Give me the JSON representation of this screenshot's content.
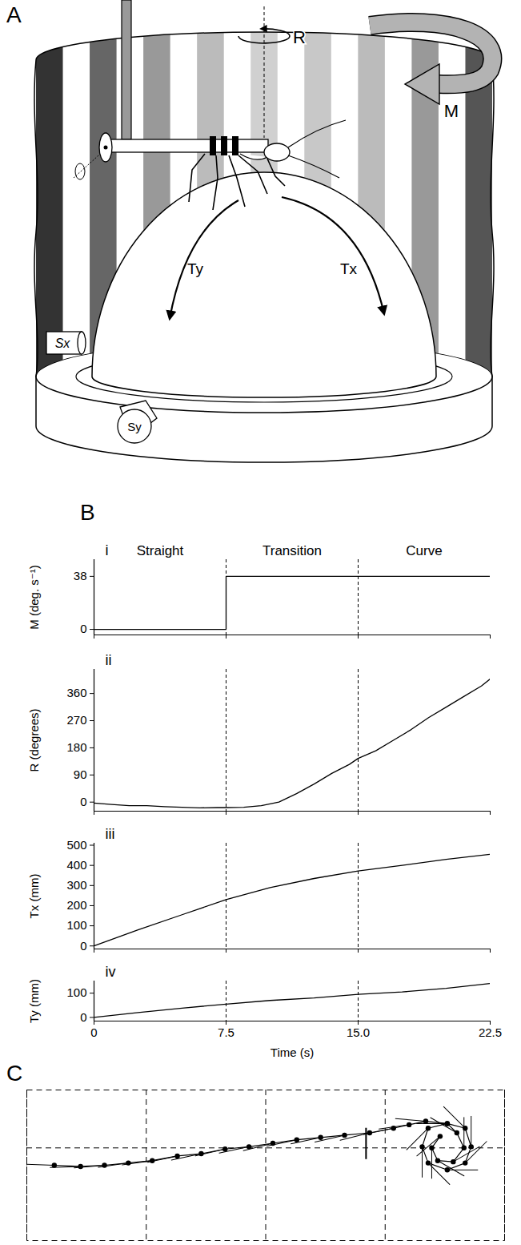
{
  "diagram": {
    "panel": "A",
    "labels": {
      "rotation": "R",
      "drum": "M",
      "ball_x": "Tx",
      "ball_y": "Ty",
      "sensor_x": "Sx",
      "sensor_y": "Sy"
    }
  },
  "chart_data": [
    {
      "type": "line",
      "panel": "B",
      "label": "i",
      "y_label": "M (deg. s⁻¹)",
      "x": [
        0,
        7.5,
        7.5,
        22.5
      ],
      "values": [
        0,
        0,
        38,
        38
      ],
      "xlim": [
        0,
        22.5
      ],
      "xticks": [
        0,
        7.5,
        {
          "value": 15,
          "label": "15.0"
        },
        22.5
      ],
      "ylim": [
        -4,
        50
      ],
      "yticks": [
        0,
        38
      ],
      "tick_labels": "y",
      "dividers": [
        7.5,
        15
      ],
      "sections": [
        {
          "label": "Straight",
          "from": 0,
          "to": 7.5
        },
        {
          "label": "Transition",
          "from": 7.5,
          "to": 15
        },
        {
          "label": "Curve",
          "from": 15,
          "to": 22.5
        }
      ],
      "color": "#000000"
    },
    {
      "type": "line",
      "label": "ii",
      "y_label": "R (degrees)",
      "x": [
        0,
        1,
        2,
        3,
        4,
        5,
        6,
        7,
        7.5,
        8.5,
        9.5,
        10.5,
        11.5,
        12.5,
        13.5,
        14.5,
        15,
        16,
        17,
        18,
        19,
        20,
        21,
        22,
        22.5
      ],
      "values": [
        -3,
        -8,
        -12,
        -12,
        -15,
        -17,
        -19,
        -18,
        -18,
        -17,
        -12,
        0,
        28,
        60,
        95,
        125,
        145,
        170,
        205,
        240,
        280,
        315,
        350,
        385,
        408
      ],
      "xlim": [
        0,
        22.5
      ],
      "xticks": [
        0,
        7.5,
        {
          "value": 15,
          "label": "15.0"
        },
        22.5
      ],
      "ylim": [
        -30,
        440
      ],
      "yticks": [
        0,
        90,
        180,
        270,
        360
      ],
      "tick_labels": "y",
      "dividers": [
        7.5,
        15
      ],
      "color": "#000000"
    },
    {
      "type": "line",
      "label": "iii",
      "y_label": "Tx (mm)",
      "x": [
        0,
        2.5,
        5,
        7.5,
        10,
        12.5,
        15,
        17.5,
        20,
        22.5
      ],
      "values": [
        0,
        80,
        155,
        230,
        290,
        335,
        372,
        400,
        430,
        455
      ],
      "xlim": [
        0,
        22.5
      ],
      "xticks": [
        0,
        7.5,
        {
          "value": 15,
          "label": "15.0"
        },
        22.5
      ],
      "ylim": [
        -15,
        510
      ],
      "yticks": [
        0,
        100,
        200,
        300,
        400,
        500
      ],
      "tick_labels": "y",
      "dividers": [
        7.5,
        15
      ],
      "color": "#000000"
    },
    {
      "type": "line",
      "label": "iv",
      "y_label": "Ty (mm)",
      "x_label": "Time (s)",
      "x": [
        0,
        2.5,
        5,
        7.5,
        10,
        12.5,
        15,
        17.5,
        20,
        22.5
      ],
      "values": [
        0,
        20,
        38,
        55,
        70,
        80,
        95,
        105,
        120,
        140
      ],
      "xlim": [
        0,
        22.5
      ],
      "xticks": [
        0,
        7.5,
        {
          "value": 15,
          "label": "15.0"
        },
        22.5
      ],
      "ylim": [
        -15,
        150
      ],
      "yticks": [
        0,
        100
      ],
      "dividers": [
        7.5,
        15
      ],
      "color": "#000000"
    },
    {
      "type": "trajectory",
      "panel": "C",
      "x": [
        23,
        45,
        65,
        85,
        105,
        126,
        146,
        166,
        186,
        206,
        226,
        246,
        266,
        287,
        307,
        320,
        334,
        352,
        367,
        372,
        367,
        352,
        336,
        331,
        336,
        352,
        360,
        366,
        357,
        344,
        339,
        346
      ],
      "y": [
        -15,
        -16,
        -15,
        -13,
        -11,
        -7,
        -5,
        -1,
        1,
        4,
        7,
        9,
        11,
        13,
        17,
        20,
        23,
        21,
        17,
        1,
        -13,
        -19,
        -13,
        1,
        17,
        21,
        13,
        0,
        -12,
        -11,
        0,
        10
      ],
      "heading": [
        272,
        268,
        265,
        262,
        262,
        258,
        258,
        257,
        258,
        256,
        258,
        258,
        257,
        256,
        258,
        262,
        275,
        270,
        315,
        0,
        45,
        90,
        135,
        180,
        225,
        270,
        300,
        0,
        60,
        120,
        180,
        230
      ],
      "event": {
        "x": 284,
        "y1": 17,
        "y2": -10
      },
      "xlim": [
        0,
        400
      ],
      "ylim": [
        -80,
        50
      ],
      "xticks": [
        0,
        100,
        200,
        300,
        400
      ],
      "yticks": [
        0
      ],
      "grid": true,
      "tick_labels": false,
      "marker": "dot",
      "color": "#000000"
    }
  ]
}
